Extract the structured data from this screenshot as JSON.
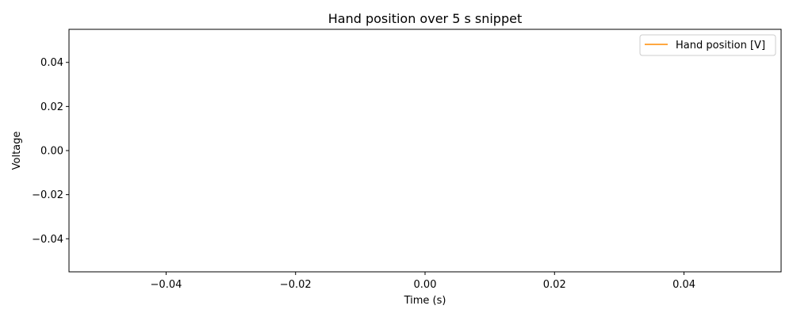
{
  "chart_data": {
    "type": "line",
    "title": "Hand position over 5 s snippet",
    "xlabel": "Time (s)",
    "ylabel": "Voltage",
    "xlim": [
      -0.055,
      0.055
    ],
    "ylim": [
      -0.055,
      0.055
    ],
    "x_ticks": [
      -0.04,
      -0.02,
      0.0,
      0.02,
      0.04
    ],
    "x_tick_labels": [
      "−0.04",
      "−0.02",
      "0.00",
      "0.02",
      "0.04"
    ],
    "y_ticks": [
      0.04,
      0.02,
      0.0,
      -0.02,
      -0.04
    ],
    "y_tick_labels": [
      "0.04",
      "0.02",
      "0.00",
      "−0.02",
      "−0.04"
    ],
    "grid": false,
    "legend_position": "top-right",
    "series": [
      {
        "name": "Hand position [V]",
        "color": "#ff8c00",
        "x": [],
        "y": []
      }
    ]
  }
}
